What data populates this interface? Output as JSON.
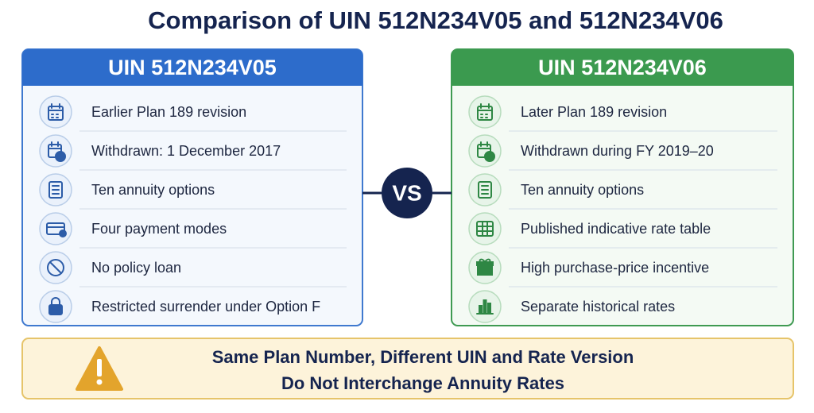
{
  "title": "Comparison of UIN 512N234V05 and 512N234V06",
  "left": {
    "header": "UIN 512N234V05",
    "items": [
      "Earlier Plan 189 revision",
      "Withdrawn: 1 December 2017",
      "Ten annuity options",
      "Four payment modes",
      "No policy loan",
      "Restricted surrender under Option F"
    ]
  },
  "vs": "VS",
  "right": {
    "header": "UIN 512N234V06",
    "items": [
      "Later Plan 189 revision",
      "Withdrawn during FY 2019–20",
      "Ten annuity options",
      "Published indicative rate table",
      "High purchase-price incentive",
      "Separate historical rates"
    ]
  },
  "footer": {
    "lines": [
      "Same Plan Number, Different UIN and Rate Version",
      "Do Not Interchange Annuity Rates"
    ]
  }
}
